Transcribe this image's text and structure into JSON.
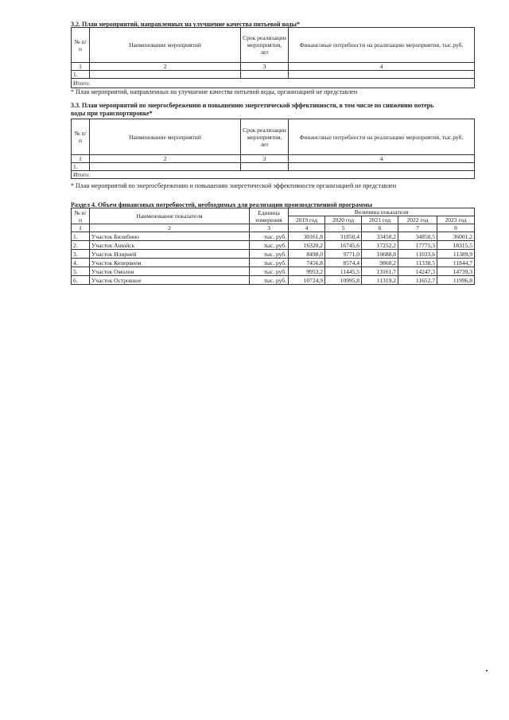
{
  "s32": {
    "title": "3.2. План мероприятий, направленных на улучшение качества питьевой воды*",
    "headers": [
      "№ п/п",
      "Наименование мероприятий",
      "Срок реализации мероприятия, лет",
      "Финансовые потребности на реализацию мероприятия, тыс.руб."
    ],
    "col_numbers": [
      "1",
      "2",
      "3",
      "4"
    ],
    "row_num": "1.",
    "total_label": "Итого:",
    "footnote": "* План мероприятий, направленных на улучшение качества питьевой воды, организацией не представлен"
  },
  "s33": {
    "title_line1": "3.3. План мероприятий по энергосбережению и повышению энергетической эффективности, в том числе по снижению потерь",
    "title_line2": "воды при транспортировке*",
    "headers": [
      "№ п/п",
      "Наименование мероприятий",
      "Срок реализации мероприятия, лет",
      "Финансовые потребности на реализацию мероприятия, тыс.руб."
    ],
    "col_numbers": [
      "1",
      "2",
      "3",
      "4"
    ],
    "row_num": "1.",
    "total_label": "Итого:",
    "footnote": "* План мероприятий по энергосбережению и повышению энергетической эффективности организацией не представлен"
  },
  "s4": {
    "title": "Раздел 4. Объем финансовых потребностей, необходимых для реализации производственной программы",
    "headers": {
      "num": "№ п/п",
      "name": "Наименование показателя",
      "unit": "Единица измерения",
      "value": "Величина показателя"
    },
    "years": [
      "2019 год",
      "2020 год",
      "2021 год",
      "2022 год",
      "2023 год"
    ],
    "col_numbers": [
      "1",
      "2",
      "3",
      "4",
      "5",
      "6",
      "7",
      "8"
    ],
    "rows": [
      {
        "num": "1.",
        "name": "Участок Билибино",
        "unit": "тыс. руб.",
        "values": [
          "30161,8",
          "31850,4",
          "33458,2",
          "34850,5",
          "36001,2"
        ]
      },
      {
        "num": "2.",
        "name": "Участок Анюйск",
        "unit": "тыс. руб.",
        "values": [
          "16320,2",
          "16745,6",
          "17252,2",
          "17775,3",
          "18315,5"
        ]
      },
      {
        "num": "3.",
        "name": "Участок Илирней",
        "unit": "тыс. руб.",
        "values": [
          "8498,0",
          "9771,0",
          "10688,8",
          "11033,6",
          "11389,9"
        ]
      },
      {
        "num": "4.",
        "name": "Участок Кепервеем",
        "unit": "тыс. руб.",
        "values": [
          "7456,8",
          "8574,4",
          "9860,2",
          "11338,5",
          "11844,7"
        ]
      },
      {
        "num": "5.",
        "name": "Участок Омолон",
        "unit": "тыс. руб.",
        "values": [
          "9953,2",
          "11445,5",
          "13161,7",
          "14247,3",
          "14739,3"
        ]
      },
      {
        "num": "6.",
        "name": "Участок Островное",
        "unit": "тыс. руб.",
        "values": [
          "10724,9",
          "10995,8",
          "11319,2",
          "11652,7",
          "11996,8"
        ]
      }
    ]
  }
}
